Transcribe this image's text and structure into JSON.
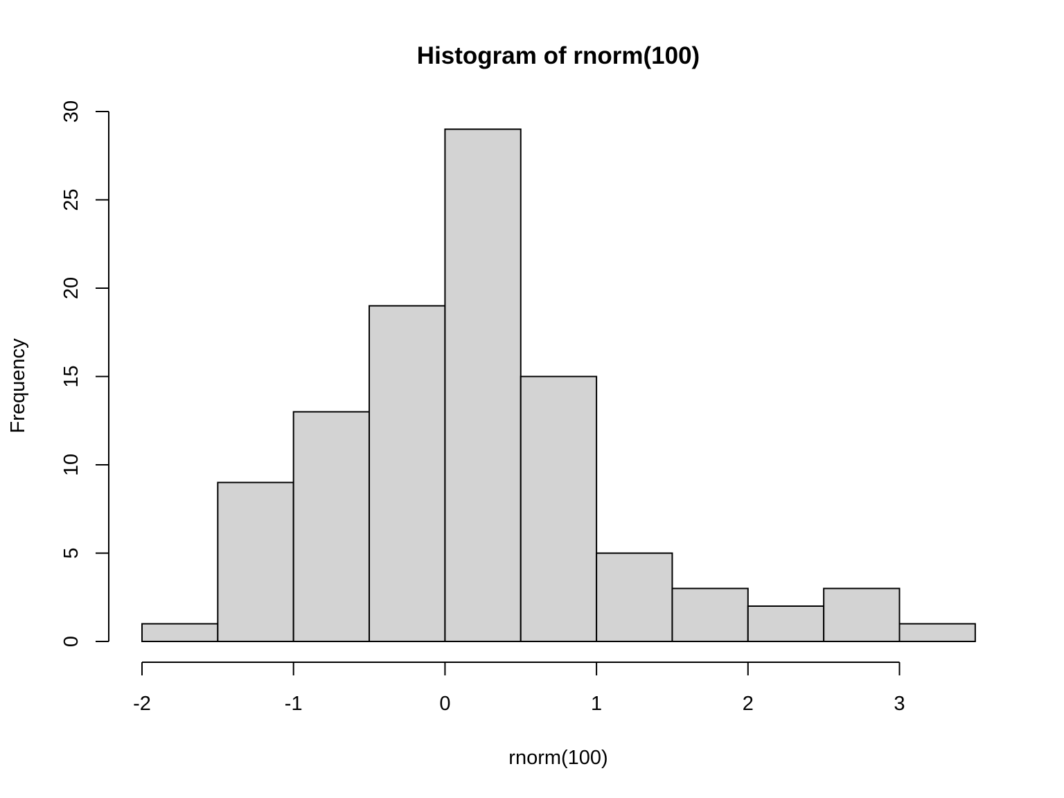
{
  "chart_data": {
    "type": "bar",
    "title": "Histogram of rnorm(100)",
    "xlabel": "rnorm(100)",
    "ylabel": "Frequency",
    "bins": [
      {
        "x0": -2.0,
        "x1": -1.5,
        "count": 1
      },
      {
        "x0": -1.5,
        "x1": -1.0,
        "count": 9
      },
      {
        "x0": -1.0,
        "x1": -0.5,
        "count": 13
      },
      {
        "x0": -0.5,
        "x1": 0.0,
        "count": 19
      },
      {
        "x0": 0.0,
        "x1": 0.5,
        "count": 29
      },
      {
        "x0": 0.5,
        "x1": 1.0,
        "count": 15
      },
      {
        "x0": 1.0,
        "x1": 1.5,
        "count": 5
      },
      {
        "x0": 1.5,
        "x1": 2.0,
        "count": 3
      },
      {
        "x0": 2.0,
        "x1": 2.5,
        "count": 2
      },
      {
        "x0": 2.5,
        "x1": 3.0,
        "count": 3
      },
      {
        "x0": 3.0,
        "x1": 3.5,
        "count": 1
      }
    ],
    "xticks": [
      -2,
      -1,
      0,
      1,
      2,
      3
    ],
    "xtick_labels": [
      "-2",
      "-1",
      "0",
      "1",
      "2",
      "3"
    ],
    "yticks": [
      0,
      5,
      10,
      15,
      20,
      25,
      30
    ],
    "ytick_labels": [
      "0",
      "5",
      "10",
      "15",
      "20",
      "25",
      "30"
    ],
    "xlim": [
      -2,
      3.5
    ],
    "ylim": [
      0,
      30
    ],
    "bar_color": "#d3d3d3",
    "grid": false,
    "legend": "none"
  }
}
